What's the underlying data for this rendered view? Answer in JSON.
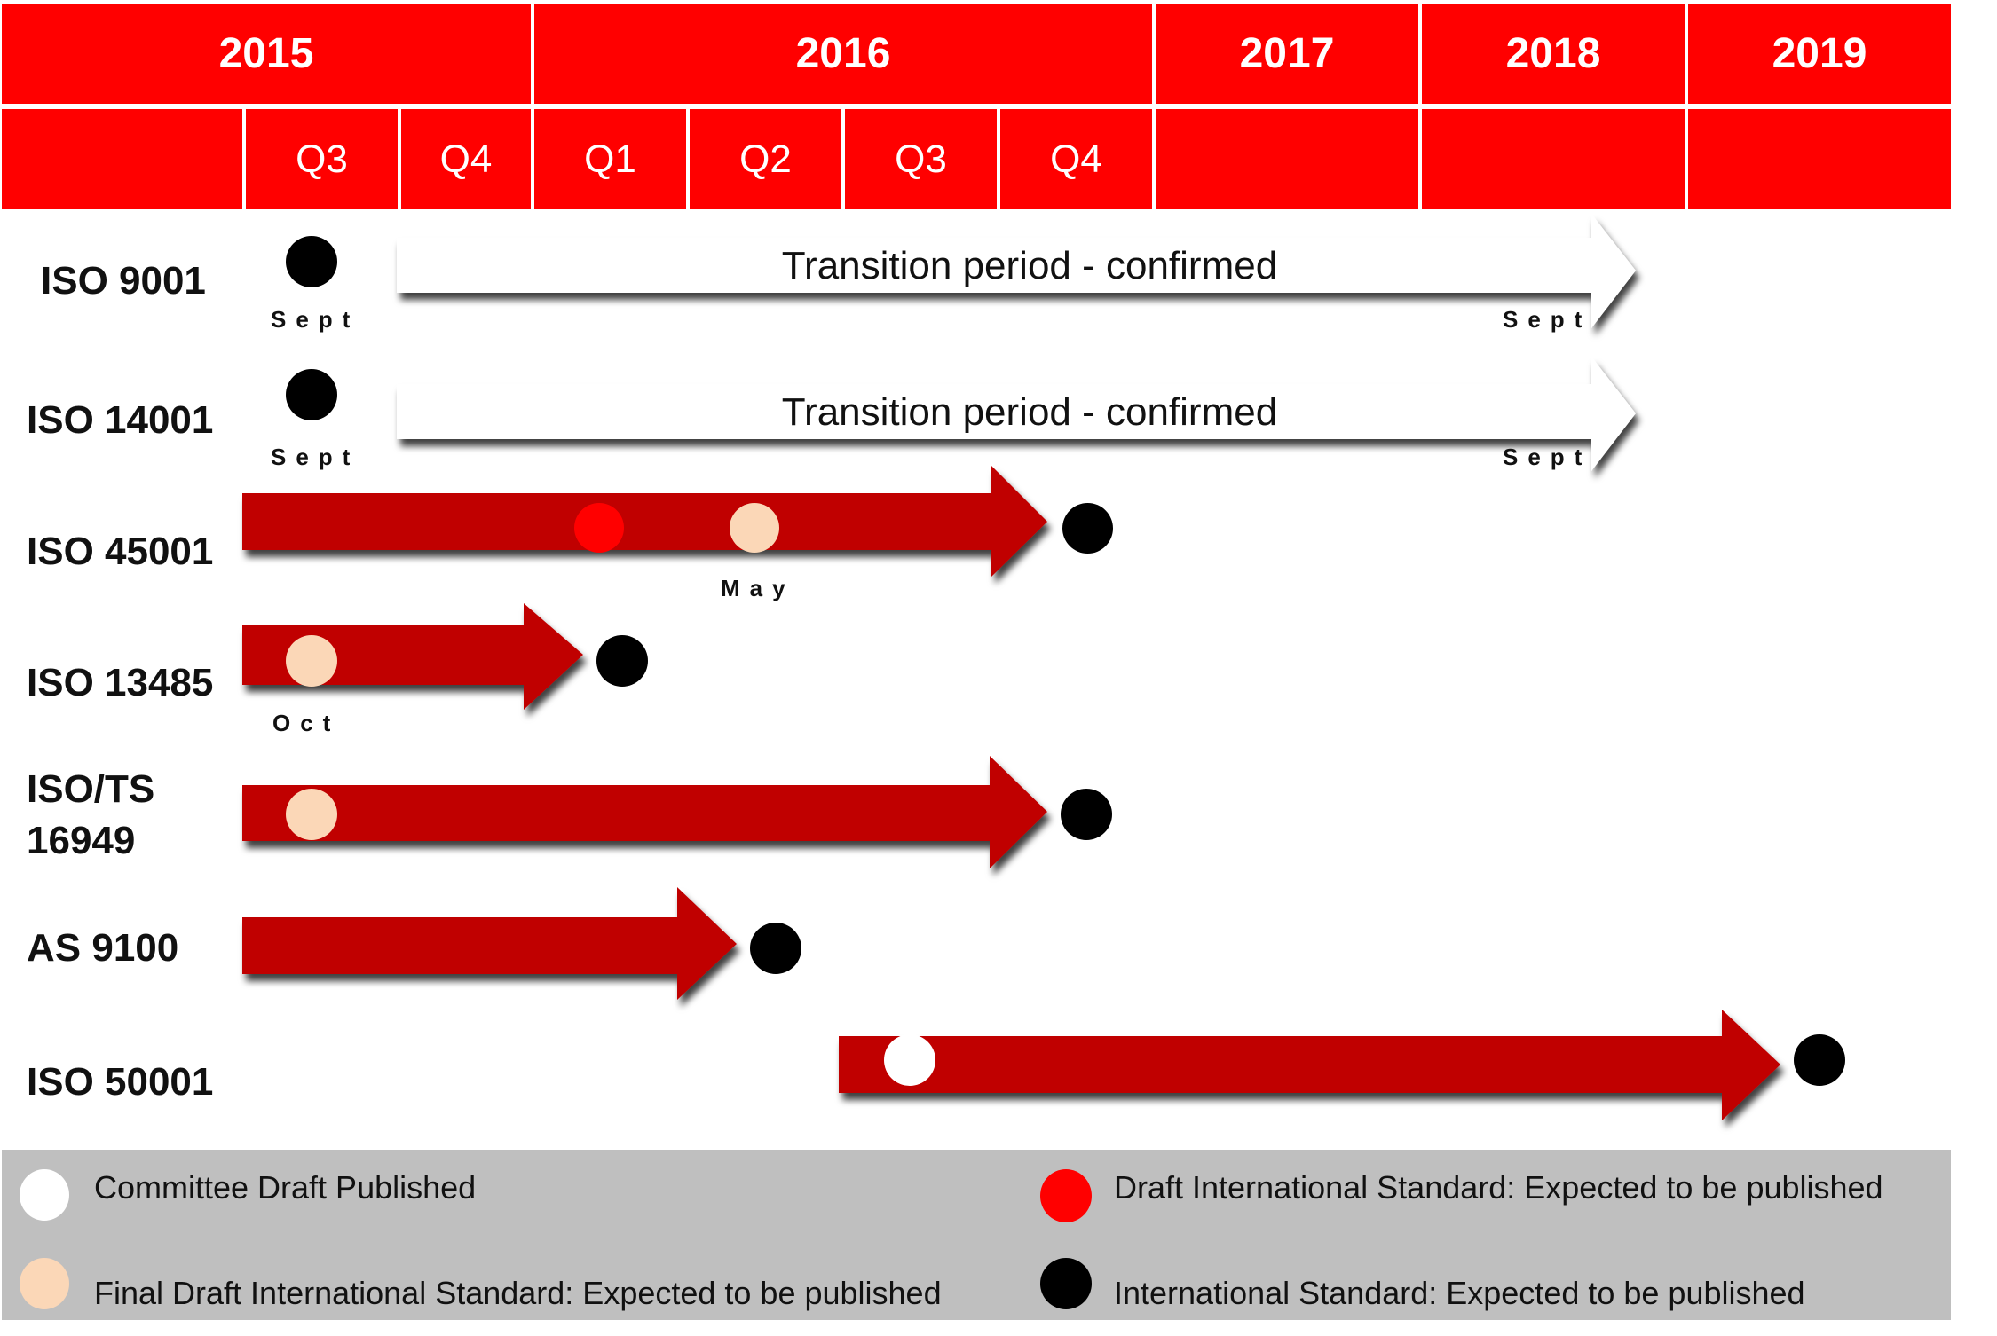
{
  "header": {
    "years": [
      "2015",
      "2016",
      "2017",
      "2018",
      "2019"
    ],
    "quarters": [
      "Q3",
      "Q4",
      "Q1",
      "Q2",
      "Q3",
      "Q4"
    ]
  },
  "rows": [
    {
      "label": "ISO 9001",
      "start_marker": "Sept",
      "end_marker": "Sept",
      "bar_text": "Transition period - confirmed",
      "bar_type": "transition"
    },
    {
      "label": "ISO 14001",
      "start_marker": "Sept",
      "end_marker": "Sept",
      "bar_text": "Transition period - confirmed",
      "bar_type": "transition"
    },
    {
      "label": "ISO 45001",
      "marker": "May",
      "bar_type": "development"
    },
    {
      "label": "ISO 13485",
      "marker": "Oct",
      "bar_type": "development"
    },
    {
      "label_line1": "ISO/TS",
      "label_line2": "16949",
      "bar_type": "development"
    },
    {
      "label": "AS 9100",
      "bar_type": "development"
    },
    {
      "label": "ISO 50001",
      "bar_type": "development"
    }
  ],
  "legend": {
    "committee_draft": "Committee Draft  Published",
    "dis": "Draft International Standard: Expected to be published",
    "fdis": "Final Draft International Standard: Expected to be published",
    "is": "International Standard: Expected to be published"
  },
  "colors": {
    "header_red": "#ff0000",
    "arrow_red": "#c00000",
    "committee_draft": "#ffffff",
    "dis": "#ff0000",
    "fdis": "#fbd7b7",
    "is": "#000000",
    "row_bg": "#f1f1f1",
    "legend_bg": "#bfbfbf"
  }
}
